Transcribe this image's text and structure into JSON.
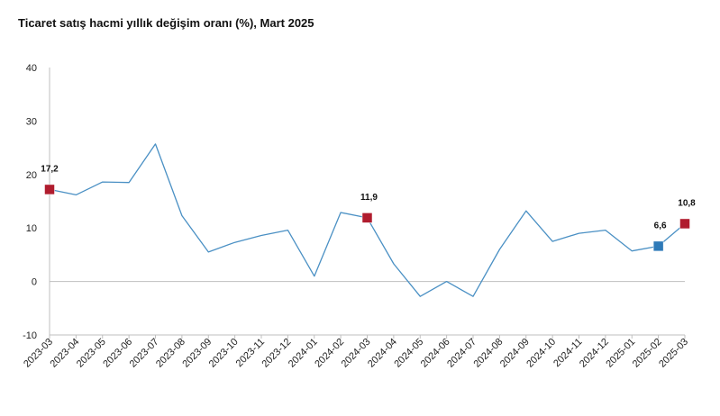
{
  "chart_data": {
    "type": "line",
    "title": "Ticaret satış hacmi yıllık değişim oranı (%), Mart 2025",
    "xlabel": "",
    "ylabel": "",
    "ylim": [
      -10,
      40
    ],
    "yticks": [
      "40",
      "30",
      "20",
      "10",
      "0",
      "-10"
    ],
    "ytick_values": [
      40,
      30,
      20,
      10,
      0,
      -10
    ],
    "categories": [
      "2023-03",
      "2023-04",
      "2023-05",
      "2023-06",
      "2023-07",
      "2023-08",
      "2023-09",
      "2023-10",
      "2023-11",
      "2023-12",
      "2024-01",
      "2024-02",
      "2024-03",
      "2024-04",
      "2024-05",
      "2024-06",
      "2024-07",
      "2024-08",
      "2024-09",
      "2024-10",
      "2024-11",
      "2024-12",
      "2025-01",
      "2025-02",
      "2025-03"
    ],
    "series": [
      {
        "values": [
          17.2,
          16.2,
          18.6,
          18.5,
          25.7,
          12.3,
          5.5,
          7.3,
          8.6,
          9.6,
          1.0,
          12.9,
          11.9,
          3.3,
          -2.8,
          0.0,
          -2.8,
          6.0,
          13.2,
          7.5,
          9.0,
          9.6,
          5.7,
          6.6,
          10.8
        ],
        "color": "#4a90c4"
      }
    ],
    "highlights": [
      {
        "index": 0,
        "label": "17,2",
        "color": "#b01c2e"
      },
      {
        "index": 12,
        "label": "11,9",
        "color": "#b01c2e"
      },
      {
        "index": 23,
        "label": "6,6",
        "color": "#2e7ab8"
      },
      {
        "index": 24,
        "label": "10,8",
        "color": "#b01c2e"
      }
    ],
    "colors": {
      "line": "#4a90c4",
      "axis": "#bfbfbf",
      "zero_line": "#bfbfbf"
    }
  }
}
